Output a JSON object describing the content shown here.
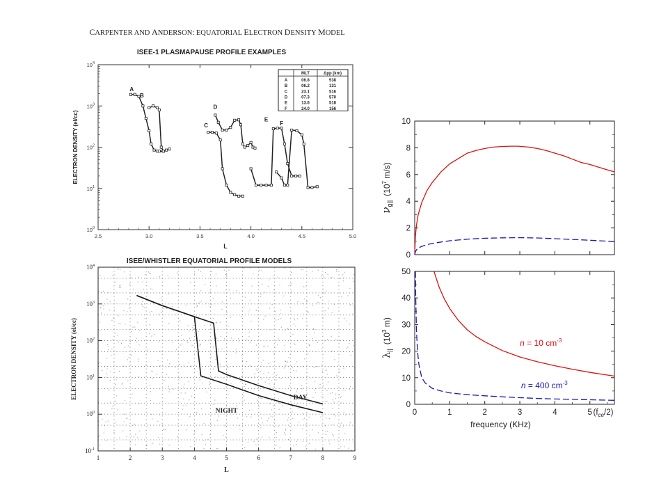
{
  "header": {
    "paper_line_part1": "C",
    "paper_line_part2": "ARPENTER AND ",
    "paper_line_part3": "A",
    "paper_line_part4": "NDERSON",
    "paper_line_part5": ": E",
    "paper_line_part6": "QUATORIAL ",
    "paper_line_part7": "E",
    "paper_line_part8": "LECTRON ",
    "paper_line_part9": "D",
    "paper_line_part10": "ENSITY ",
    "paper_line_part11": "M",
    "paper_line_part12": "ODEL"
  },
  "chart_data": [
    {
      "type": "line",
      "title": "ISEE-1 PLASMAPAUSE PROFILE EXAMPLES",
      "xlabel": "L",
      "ylabel": "ELECTRON DENSITY (el/cc)",
      "xlim": [
        2.5,
        5.0
      ],
      "ylim": [
        1,
        10000
      ],
      "yscale": "log",
      "x_ticks": [
        "2.5",
        "3.0",
        "3.5",
        "4.0",
        "4.5",
        "5.0"
      ],
      "y_ticks": [
        {
          "base": "10",
          "exp": "0"
        },
        {
          "base": "10",
          "exp": "1"
        },
        {
          "base": "10",
          "exp": "2"
        },
        {
          "base": "10",
          "exp": "3"
        },
        {
          "base": "10",
          "exp": "4"
        }
      ],
      "table": {
        "headers": [
          "",
          "MLT",
          "Δpp (km)"
        ],
        "rows": [
          [
            "A",
            "06.8",
            "538"
          ],
          [
            "B",
            "06.2",
            "131"
          ],
          [
            "C",
            "23.1",
            "516"
          ],
          [
            "D",
            "07.3",
            "570"
          ],
          [
            "E",
            "13.6",
            "518"
          ],
          [
            "F",
            "24.0",
            "156"
          ]
        ]
      },
      "series": [
        {
          "name": "A",
          "label_at": [
            2.83,
            2300
          ],
          "x": [
            2.82,
            2.86,
            2.9,
            2.94,
            2.97,
            3.0,
            3.02,
            3.05,
            3.08,
            3.1,
            3.14
          ],
          "y": [
            1900,
            1900,
            1700,
            1000,
            500,
            250,
            120,
            85,
            80,
            80,
            80
          ]
        },
        {
          "name": "B",
          "label_at": [
            2.93,
            1600
          ],
          "x": [
            3.0,
            3.04,
            3.08,
            3.1,
            3.12,
            3.14,
            3.17,
            3.2
          ],
          "y": [
            900,
            1000,
            900,
            800,
            100,
            80,
            85,
            90
          ]
        },
        {
          "name": "C",
          "label_at": [
            3.56,
            300
          ],
          "x": [
            3.58,
            3.62,
            3.66,
            3.7,
            3.72,
            3.76,
            3.8,
            3.84,
            3.88,
            3.92
          ],
          "y": [
            230,
            230,
            220,
            150,
            30,
            12,
            8,
            7,
            6.5,
            6.5
          ]
        },
        {
          "name": "D",
          "label_at": [
            3.65,
            850
          ],
          "x": [
            3.65,
            3.68,
            3.72,
            3.76,
            3.8,
            3.84,
            3.88,
            3.9,
            3.92,
            3.94,
            3.97,
            4.0,
            4.02,
            4.04
          ],
          "y": [
            600,
            400,
            260,
            260,
            300,
            450,
            460,
            350,
            120,
            100,
            110,
            130,
            100,
            95
          ]
        },
        {
          "name": "E",
          "label_at": [
            4.15,
            420
          ],
          "x": [
            4.0,
            4.05,
            4.1,
            4.15,
            4.2,
            4.22,
            4.26,
            4.3,
            4.33,
            4.36,
            4.4,
            4.44,
            4.48
          ],
          "y": [
            30,
            12,
            12,
            12,
            12,
            280,
            290,
            290,
            120,
            40,
            20,
            20,
            20
          ]
        },
        {
          "name": "F",
          "label_at": [
            4.3,
            340
          ],
          "x": [
            4.25,
            4.3,
            4.33,
            4.36,
            4.4,
            4.45,
            4.5,
            4.52,
            4.56,
            4.6,
            4.65
          ],
          "y": [
            25,
            18,
            12,
            12,
            260,
            250,
            200,
            120,
            10.5,
            10.5,
            11
          ]
        }
      ]
    },
    {
      "type": "line",
      "title": "ISEE/WHISTLER EQUATORIAL PROFILE MODELS",
      "xlabel": "L",
      "ylabel": "ELECTRON DENSITY (el/cc)",
      "xlim": [
        1,
        9
      ],
      "ylim": [
        0.1,
        10000
      ],
      "yscale": "log",
      "x_ticks": [
        "1",
        "2",
        "3",
        "4",
        "5",
        "6",
        "7",
        "8",
        "9"
      ],
      "y_ticks": [
        {
          "base": "10",
          "exp": "-1"
        },
        {
          "base": "10",
          "exp": "0"
        },
        {
          "base": "10",
          "exp": "1"
        },
        {
          "base": "10",
          "exp": "2"
        },
        {
          "base": "10",
          "exp": "3"
        },
        {
          "base": "10",
          "exp": "4"
        }
      ],
      "series": [
        {
          "name": "DAY",
          "x": [
            2.2,
            3.0,
            4.0,
            4.6,
            4.75,
            5.0,
            6.0,
            7.0,
            8.0
          ],
          "y": [
            1700,
            900,
            450,
            300,
            15,
            12,
            6,
            3.2,
            1.9
          ]
        },
        {
          "name": "NIGHT",
          "x": [
            2.2,
            3.0,
            4.0,
            4.2,
            5.0,
            6.0,
            7.0,
            8.0
          ],
          "y": [
            1700,
            900,
            450,
            11,
            6.5,
            3.2,
            1.8,
            1.1
          ]
        }
      ],
      "annotations": [
        {
          "text": "DAY",
          "x": 7.3,
          "y": 2.5
        },
        {
          "text": "NIGHT",
          "x": 5.0,
          "y": 1.1
        }
      ]
    },
    {
      "type": "line",
      "xlabel": "",
      "ylabel_symbol": "ν",
      "ylabel_sub": "g||",
      "ylabel_units": "(10",
      "ylabel_units_exp": "7",
      "ylabel_units_tail": " m/s)",
      "xlim": [
        0,
        5.7
      ],
      "ylim": [
        0,
        10
      ],
      "y_ticks": [
        "0",
        "2",
        "4",
        "6",
        "8",
        "10"
      ],
      "series": [
        {
          "name": "n10",
          "color": "#dd1111",
          "dash": "solid",
          "x": [
            0.0,
            0.02,
            0.05,
            0.1,
            0.2,
            0.35,
            0.5,
            0.75,
            1.0,
            1.25,
            1.5,
            1.75,
            2.0,
            2.25,
            2.5,
            2.75,
            2.95,
            3.25,
            3.5,
            3.75,
            4.0,
            4.25,
            4.5,
            4.75,
            5.0,
            5.25,
            5.5,
            5.7
          ],
          "y": [
            0.0,
            1.4,
            2.2,
            3.0,
            3.9,
            4.8,
            5.4,
            6.2,
            6.8,
            7.2,
            7.6,
            7.8,
            7.95,
            8.05,
            8.1,
            8.12,
            8.12,
            8.05,
            7.95,
            7.8,
            7.6,
            7.4,
            7.15,
            6.9,
            6.75,
            6.55,
            6.35,
            6.2
          ]
        },
        {
          "name": "n400",
          "color": "#1a1abb",
          "dash": "dashed",
          "x": [
            0.0,
            0.02,
            0.05,
            0.1,
            0.2,
            0.35,
            0.5,
            0.75,
            1.0,
            1.25,
            1.5,
            1.75,
            2.0,
            2.5,
            3.0,
            3.5,
            4.0,
            4.5,
            5.0,
            5.5,
            5.7
          ],
          "y": [
            0.0,
            0.22,
            0.36,
            0.5,
            0.62,
            0.75,
            0.84,
            0.95,
            1.04,
            1.1,
            1.16,
            1.2,
            1.23,
            1.26,
            1.27,
            1.25,
            1.2,
            1.14,
            1.08,
            1.01,
            0.98
          ]
        }
      ]
    },
    {
      "type": "line",
      "xlabel": "frequency  (KHz)",
      "ylabel_symbol": "λ",
      "ylabel_sub": "||",
      "ylabel_units": "(10",
      "ylabel_units_exp": "3",
      "ylabel_units_tail": " m)",
      "xlim": [
        0,
        5.7
      ],
      "ylim": [
        0,
        50
      ],
      "x_ticks": [
        "0",
        "1",
        "2",
        "3",
        "4",
        "5"
      ],
      "x_end_label": "(f",
      "x_end_label_sub": "ce",
      "x_end_label_tail": "/2)",
      "y_ticks": [
        "0",
        "10",
        "20",
        "30",
        "40",
        "50"
      ],
      "series": [
        {
          "name": "n10",
          "color": "#dd1111",
          "dash": "solid",
          "x": [
            0.55,
            0.7,
            0.85,
            1.0,
            1.25,
            1.5,
            1.75,
            2.0,
            2.5,
            3.0,
            3.5,
            4.0,
            4.5,
            5.0,
            5.5,
            5.7
          ],
          "y": [
            50,
            44,
            39.5,
            36,
            31.5,
            28,
            25.5,
            23.5,
            20.2,
            17.8,
            16.0,
            14.5,
            13.2,
            12.0,
            11.0,
            10.6
          ]
        },
        {
          "name": "n400",
          "color": "#1a1abb",
          "dash": "dashed",
          "x": [
            0.02,
            0.03,
            0.05,
            0.08,
            0.12,
            0.2,
            0.3,
            0.5,
            0.75,
            1.0,
            1.5,
            2.0,
            2.5,
            3.0,
            3.5,
            4.0,
            4.5,
            5.0,
            5.5,
            5.7
          ],
          "y": [
            50,
            40,
            28,
            20,
            15,
            10,
            8,
            6,
            5,
            4.3,
            3.6,
            3.2,
            2.8,
            2.5,
            2.2,
            2.0,
            1.85,
            1.7,
            1.55,
            1.5
          ]
        }
      ],
      "annotations": [
        {
          "series": "n10",
          "italic": "n",
          "text": " = 10  cm",
          "exp": "-3",
          "x": 3.6,
          "y": 22,
          "color": "#dd1111"
        },
        {
          "series": "n400",
          "italic": "n",
          "text": " = 400  cm",
          "exp": "-3",
          "x": 3.7,
          "y": 6,
          "color": "#1a1abb"
        }
      ]
    }
  ]
}
